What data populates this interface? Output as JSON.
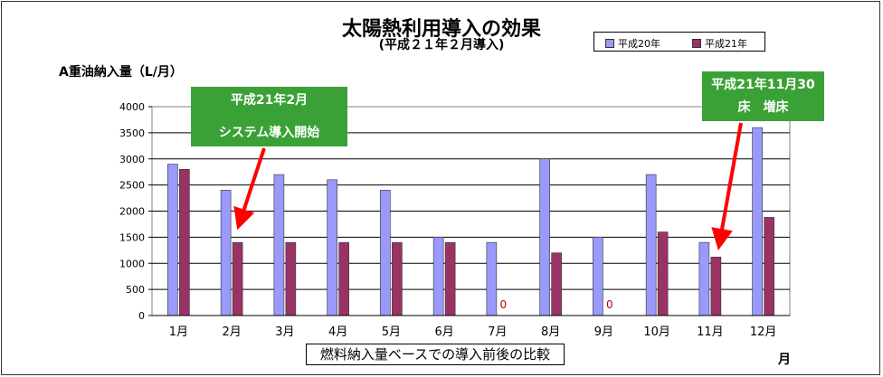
{
  "title": "太陽熱利用導入の効果",
  "subtitle": "(平成２１年２月導入)",
  "colors": {
    "series1": "#9a99fc",
    "series2": "#993366",
    "zero_label": "#c00000",
    "callout": "#3aa136",
    "arrow": "#ff0000"
  },
  "callouts": [
    {
      "line1": "平成21年2月",
      "line2": "システム導入開始"
    },
    {
      "line1": "平成21年11月30",
      "line2": "床　増床"
    }
  ],
  "footnote": "燃料納入量ベースでの導入前後の比較",
  "chart_data": {
    "type": "bar",
    "title": "太陽熱利用導入の効果",
    "subtitle": "(平成２１年２月導入)",
    "ylabel": "A重油納入量（L/月）",
    "xlabel": "月",
    "ylim": [
      0,
      4000
    ],
    "yticks": [
      0,
      500,
      1000,
      1500,
      2000,
      2500,
      3000,
      3500,
      4000
    ],
    "grid": true,
    "legend_position": "top-right",
    "categories": [
      "1月",
      "2月",
      "3月",
      "4月",
      "5月",
      "6月",
      "7月",
      "8月",
      "9月",
      "10月",
      "11月",
      "12月"
    ],
    "series": [
      {
        "name": "平成20年",
        "values": [
          2900,
          2400,
          2700,
          2600,
          2400,
          1500,
          1400,
          3000,
          1500,
          2700,
          1400,
          3600
        ]
      },
      {
        "name": "平成21年",
        "values": [
          2800,
          1400,
          1400,
          1400,
          1400,
          1400,
          0,
          1200,
          0,
          1600,
          1120,
          1880
        ]
      }
    ],
    "data_labels": [
      {
        "series": 1,
        "index": 6,
        "text": "0"
      },
      {
        "series": 1,
        "index": 8,
        "text": "0"
      }
    ]
  }
}
